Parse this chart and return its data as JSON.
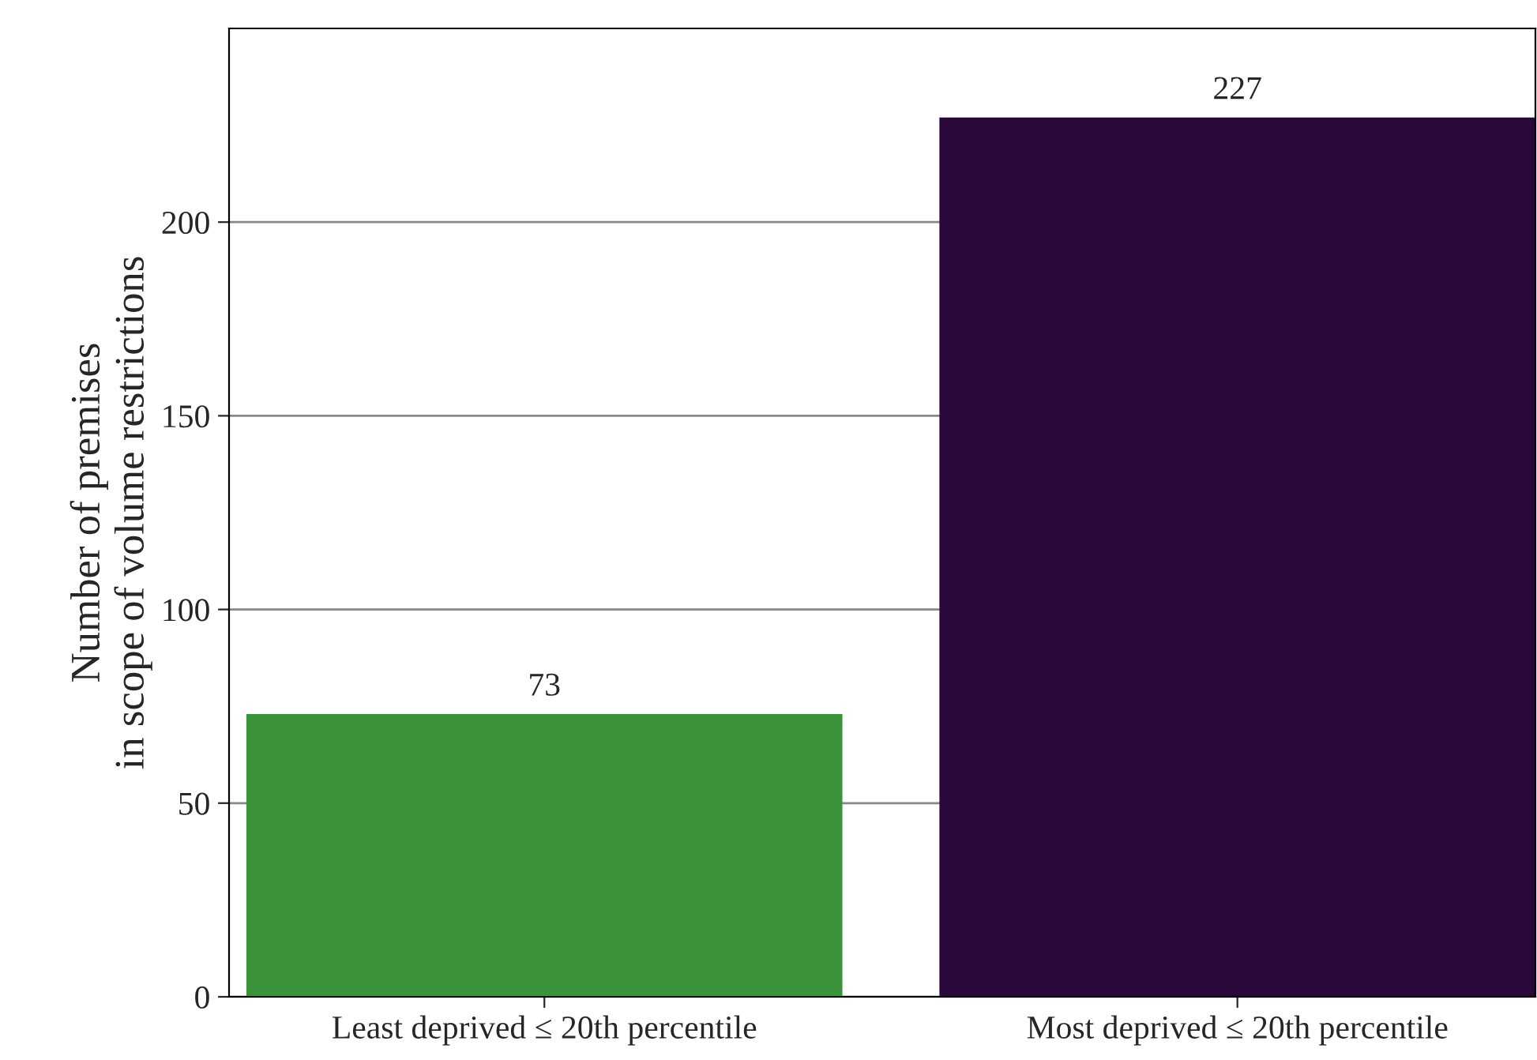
{
  "chart_data": {
    "type": "bar",
    "ylabel": "Number of premises\nin scope of volume restrictions",
    "categories": [
      "Least deprived ≤ 20th percentile",
      "Most deprived ≤ 20th percentile"
    ],
    "values": [
      73,
      227
    ],
    "colors": [
      "#2ca02c",
      "#2d0042"
    ],
    "ylim": [
      0,
      250
    ],
    "yticks": [
      0,
      50,
      100,
      150,
      200
    ],
    "grid": "y",
    "data_labels": true
  }
}
